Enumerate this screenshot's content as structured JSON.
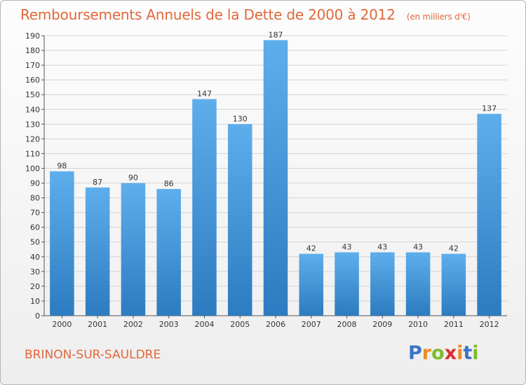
{
  "header": {
    "title": "Remboursements Annuels de la Dette de 2000 à 2012",
    "subtitle": "(en milliers d'€)"
  },
  "footer": {
    "commune": "BRINON-SUR-SAULDRE",
    "brand": {
      "letters": [
        "P",
        "r",
        "o",
        "x",
        "i",
        "t",
        "i"
      ],
      "colors": [
        "#3a74c7",
        "#ee8a1e",
        "#7cbb2a",
        "#dd2b2b",
        "#ee8a1e",
        "#3a74c7",
        "#7cbb2a"
      ]
    }
  },
  "colors": {
    "bar_top": "#5eaeec",
    "bar_bottom": "#2d7bc0",
    "grid": "#d4d4d4",
    "accent": "#e2673a"
  },
  "chart_data": {
    "type": "bar",
    "title": "Remboursements Annuels de la Dette de 2000 à 2012",
    "subtitle": "(en milliers d'€)",
    "categories": [
      "2000",
      "2001",
      "2002",
      "2003",
      "2004",
      "2005",
      "2006",
      "2007",
      "2008",
      "2009",
      "2010",
      "2011",
      "2012"
    ],
    "values": [
      98,
      87,
      90,
      86,
      147,
      130,
      187,
      42,
      43,
      43,
      43,
      42,
      137
    ],
    "ylim": [
      0,
      190
    ],
    "ytick_step": 10,
    "grid": true,
    "xlabel": "",
    "ylabel": ""
  }
}
